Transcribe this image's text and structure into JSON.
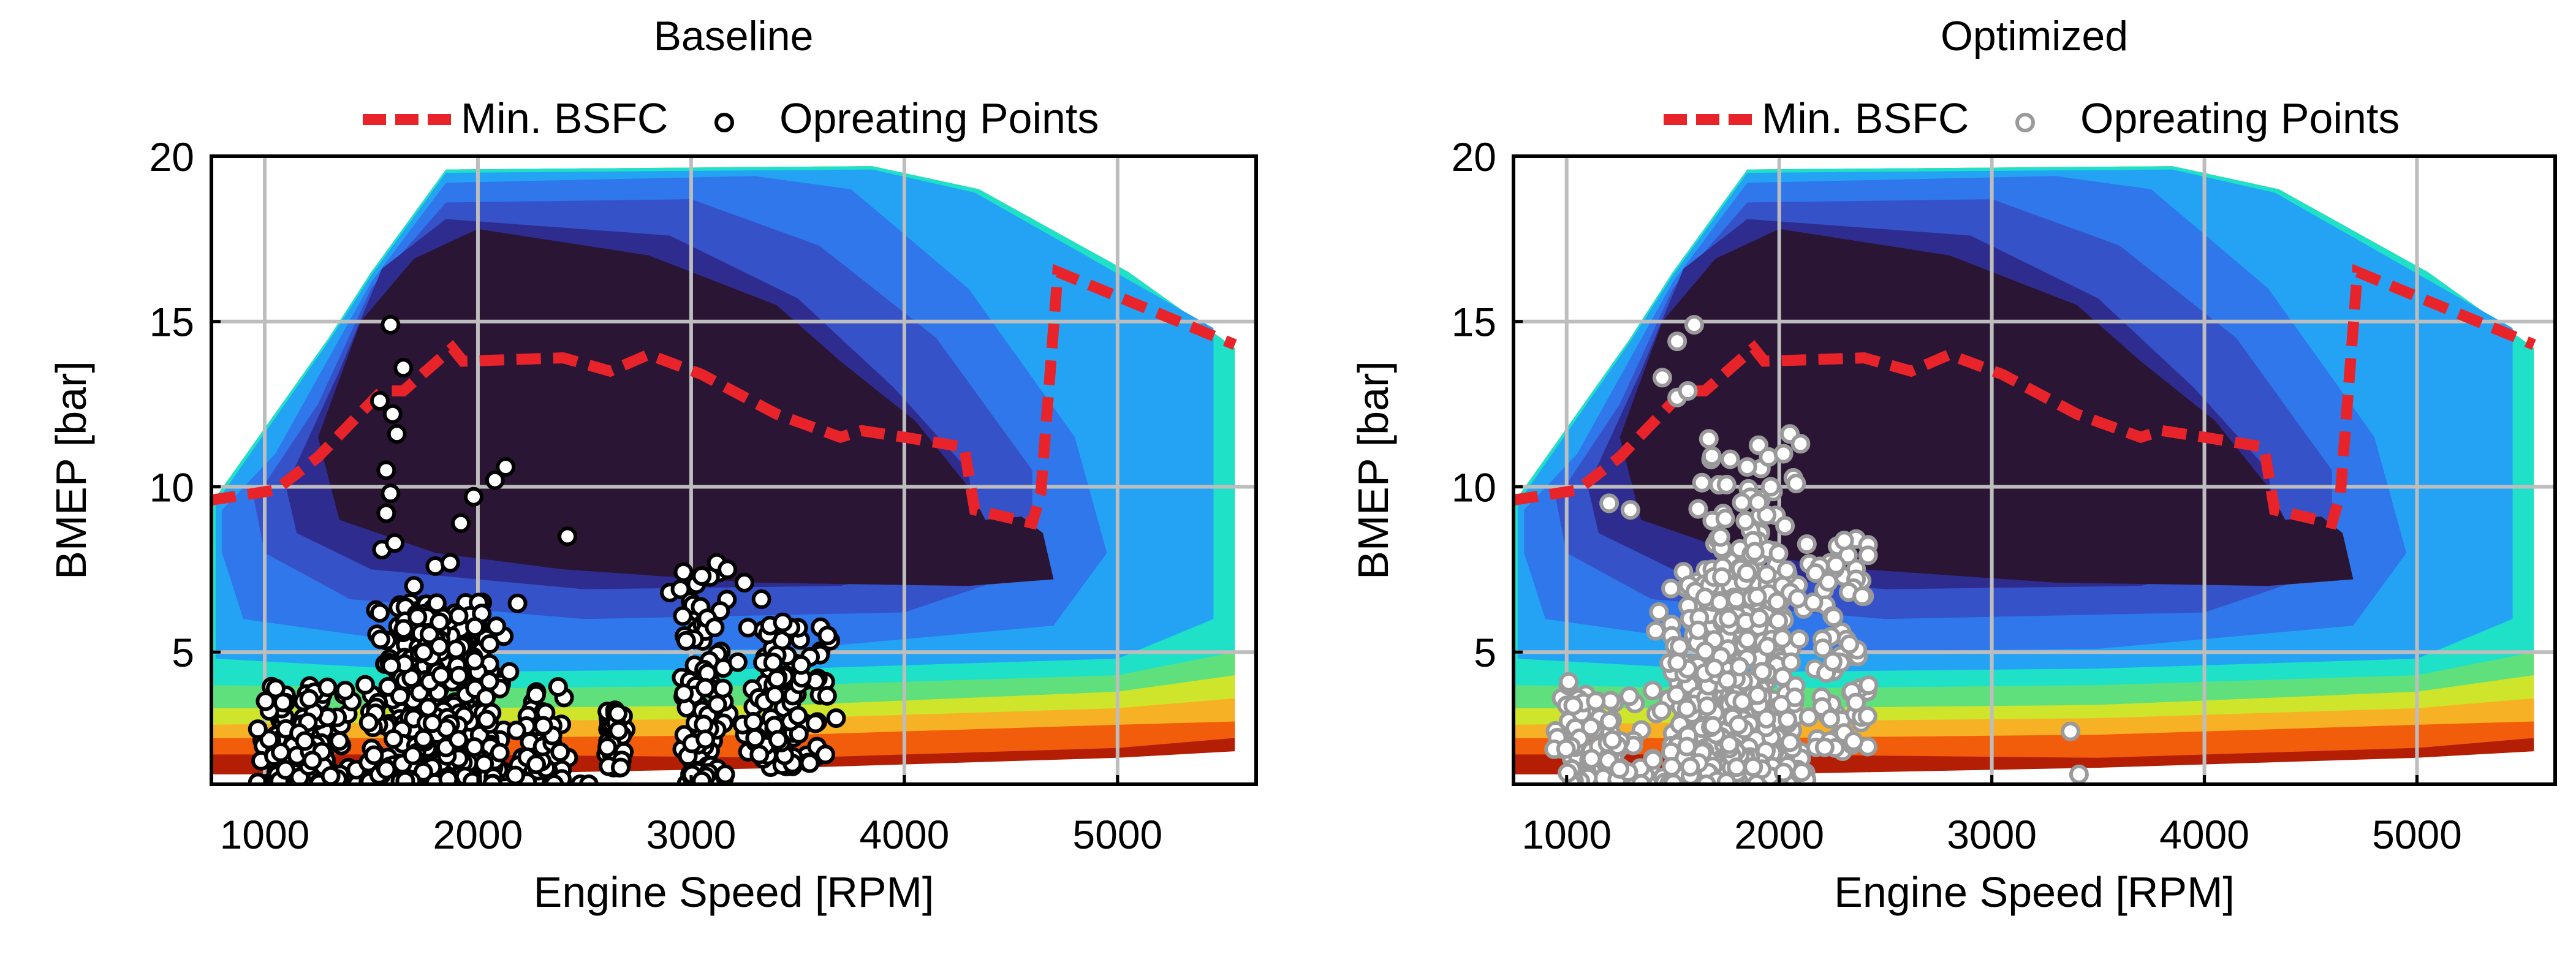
{
  "chart_data": [
    {
      "type": "contour",
      "title": "Baseline",
      "xlabel": "Engine Speed [RPM]",
      "ylabel": "BMEP [bar]",
      "xlim": [
        750,
        5650
      ],
      "ylim": [
        1,
        20
      ],
      "xticks": [
        1000,
        2000,
        3000,
        4000,
        5000
      ],
      "yticks": [
        5,
        10,
        15,
        20
      ],
      "grid": true,
      "legend": {
        "placement": "top",
        "entries": [
          {
            "label": "Min. BSFC",
            "style": "dashed-line",
            "color": "#e8242a"
          },
          {
            "label": "Opreating Points",
            "style": "marker",
            "fill": "#ffffff",
            "edge": "#000000"
          }
        ]
      },
      "contour_colors": [
        "#b31e05",
        "#f25d0c",
        "#f7b125",
        "#cfe52b",
        "#5fe07d",
        "#1ee1c8",
        "#24a3f5",
        "#2f77ea",
        "#3552c8",
        "#2f2c8f",
        "#2a1535"
      ],
      "min_bsfc_line": {
        "color": "#e8242a",
        "x": [
          750,
          1050,
          1250,
          1550,
          1650,
          1880,
          1930,
          2400,
          2620,
          2800,
          3050,
          3400,
          3700,
          3800,
          4000,
          4280,
          4330,
          4600,
          4640,
          4720,
          5550
        ],
        "y": [
          9.6,
          9.9,
          10.9,
          12.9,
          12.9,
          14.2,
          13.8,
          13.9,
          13.5,
          14.0,
          13.4,
          12.2,
          11.5,
          11.7,
          11.5,
          11.2,
          9.3,
          8.9,
          9.8,
          16.5,
          14.3
        ]
      },
      "operating_points": {
        "marker_fill": "#ffffff",
        "marker_edge": "#000000",
        "clusters": [
          {
            "x_range": [
              950,
              1450
            ],
            "y_range": [
              1.0,
              4.0
            ],
            "count": 130
          },
          {
            "x_range": [
              1450,
              2200
            ],
            "y_range": [
              1.0,
              6.5
            ],
            "count": 520
          },
          {
            "x_range": [
              2150,
              2450
            ],
            "y_range": [
              1.0,
              4.0
            ],
            "count": 55
          },
          {
            "x_range": [
              2580,
              2720
            ],
            "y_range": [
              1.5,
              3.3
            ],
            "count": 45
          },
          {
            "x_range": [
              2920,
              3200
            ],
            "y_range": [
              1.0,
              7.5
            ],
            "count": 110
          },
          {
            "x_range": [
              3200,
              3680
            ],
            "y_range": [
              1.5,
              6.0
            ],
            "count": 100
          }
        ],
        "points": [
          [
            1590,
            14.9
          ],
          [
            1650,
            13.6
          ],
          [
            1600,
            12.2
          ],
          [
            1540,
            12.6
          ],
          [
            1620,
            11.6
          ],
          [
            1570,
            10.5
          ],
          [
            1590,
            9.8
          ],
          [
            1570,
            9.2
          ],
          [
            1550,
            8.1
          ],
          [
            1610,
            8.3
          ],
          [
            1920,
            8.9
          ],
          [
            1980,
            9.7
          ],
          [
            2080,
            10.2
          ],
          [
            2130,
            10.6
          ],
          [
            2420,
            8.5
          ],
          [
            1800,
            7.6
          ],
          [
            1870,
            7.7
          ],
          [
            1700,
            7.0
          ],
          [
            3050,
            7.3
          ],
          [
            3120,
            7.7
          ],
          [
            3170,
            7.5
          ],
          [
            3250,
            7.1
          ],
          [
            3330,
            6.6
          ],
          [
            3370,
            5.8
          ],
          [
            3430,
            5.9
          ],
          [
            3640,
            5.5
          ],
          [
            3680,
            3.0
          ],
          [
            3630,
            1.9
          ],
          [
            3050,
            1.1
          ],
          [
            3160,
            1.3
          ],
          [
            2480,
            1.0
          ],
          [
            2520,
            1.0
          ],
          [
            2900,
            6.8
          ],
          [
            2950,
            6.9
          ],
          [
            3300,
            2.4
          ],
          [
            3320,
            1.9
          ]
        ]
      }
    },
    {
      "type": "contour",
      "title": "Optimized",
      "xlabel": "Engine Speed [RPM]",
      "ylabel": "BMEP [bar]",
      "xlim": [
        750,
        5650
      ],
      "ylim": [
        1,
        20
      ],
      "xticks": [
        1000,
        2000,
        3000,
        4000,
        5000
      ],
      "yticks": [
        5,
        10,
        15,
        20
      ],
      "grid": true,
      "legend": {
        "placement": "top",
        "entries": [
          {
            "label": "Min. BSFC",
            "style": "dashed-line",
            "color": "#e8242a"
          },
          {
            "label": "Opreating Points",
            "style": "marker",
            "fill": "#ffffff",
            "edge": "#9a9a9a"
          }
        ]
      },
      "contour_colors": [
        "#b31e05",
        "#f25d0c",
        "#f7b125",
        "#cfe52b",
        "#5fe07d",
        "#1ee1c8",
        "#24a3f5",
        "#2f77ea",
        "#3552c8",
        "#2f2c8f",
        "#2a1535"
      ],
      "min_bsfc_line": {
        "color": "#e8242a",
        "x": [
          750,
          1050,
          1250,
          1550,
          1650,
          1880,
          1930,
          2400,
          2620,
          2800,
          3050,
          3400,
          3700,
          3800,
          4000,
          4280,
          4330,
          4600,
          4640,
          4720,
          5550
        ],
        "y": [
          9.6,
          9.9,
          10.9,
          12.9,
          12.9,
          14.2,
          13.8,
          13.9,
          13.5,
          14.0,
          13.4,
          12.2,
          11.5,
          11.7,
          11.5,
          11.2,
          9.3,
          8.9,
          9.8,
          16.5,
          14.3
        ]
      },
      "operating_points": {
        "marker_fill": "#ffffff",
        "marker_edge": "#9a9a9a",
        "clusters": [
          {
            "x_range": [
              900,
              1450
            ],
            "y_range": [
              1.0,
              4.0
            ],
            "count": 110
          },
          {
            "x_range": [
              1400,
              2150
            ],
            "y_range": [
              1.0,
              7.5
            ],
            "count": 560
          },
          {
            "x_range": [
              1600,
              2100
            ],
            "y_range": [
              6.5,
              11.5
            ],
            "count": 90
          },
          {
            "x_range": [
              2100,
              2450
            ],
            "y_range": [
              2.0,
              8.5
            ],
            "count": 80
          }
        ],
        "points": [
          [
            1520,
            14.4
          ],
          [
            1600,
            14.9
          ],
          [
            1450,
            13.3
          ],
          [
            1520,
            12.7
          ],
          [
            1570,
            12.9
          ],
          [
            1300,
            9.3
          ],
          [
            1200,
            9.5
          ],
          [
            1850,
            10.6
          ],
          [
            1950,
            10.9
          ],
          [
            2050,
            11.6
          ],
          [
            2100,
            11.3
          ],
          [
            2020,
            11.0
          ],
          [
            2080,
            10.1
          ],
          [
            1960,
            10.0
          ],
          [
            2350,
            2.3
          ],
          [
            2420,
            4.0
          ],
          [
            3370,
            2.6
          ],
          [
            3410,
            1.3
          ],
          [
            1010,
            4.1
          ]
        ]
      }
    }
  ]
}
